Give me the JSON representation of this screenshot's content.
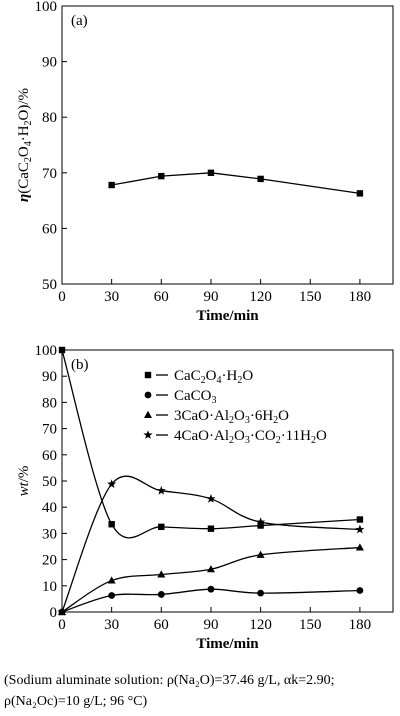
{
  "chart_data": [
    {
      "type": "line",
      "panel_label": "(a)",
      "ylabel": "η(CaC₂O₄·H₂O)/%",
      "xlabel": "Time/min",
      "xlim": [
        0,
        200
      ],
      "ylim": [
        50,
        100
      ],
      "xticks": [
        0,
        30,
        60,
        90,
        120,
        150,
        180
      ],
      "yticks": [
        50,
        60,
        70,
        80,
        90,
        100
      ],
      "series": [
        {
          "marker": "square",
          "x": [
            30,
            60,
            90,
            120,
            180
          ],
          "y": [
            67.8,
            69.4,
            70.0,
            68.9,
            66.3
          ]
        }
      ]
    },
    {
      "type": "line",
      "panel_label": "(b)",
      "ylabel": "wt/%",
      "xlabel": "Time/min",
      "xlim": [
        0,
        200
      ],
      "ylim": [
        0,
        100
      ],
      "xticks": [
        0,
        30,
        60,
        90,
        120,
        150,
        180
      ],
      "yticks": [
        0,
        10,
        20,
        30,
        40,
        50,
        60,
        70,
        80,
        90,
        100
      ],
      "legend_position": "top-right",
      "series": [
        {
          "name": "CaC₂O₄·H₂O",
          "marker": "square",
          "x": [
            0,
            30,
            60,
            90,
            120,
            180
          ],
          "y": [
            100,
            33.5,
            32.5,
            31.8,
            33.0,
            35.3
          ]
        },
        {
          "name": "CaCO₃",
          "marker": "circle",
          "x": [
            0,
            30,
            60,
            90,
            120,
            180
          ],
          "y": [
            0,
            6.3,
            6.7,
            8.7,
            7.2,
            8.2
          ]
        },
        {
          "name": "3CaO·Al₂O₃·6H₂O",
          "marker": "triangle",
          "x": [
            0,
            30,
            60,
            90,
            120,
            180
          ],
          "y": [
            0,
            12.0,
            14.3,
            16.3,
            21.8,
            24.6
          ]
        },
        {
          "name": "4CaO·Al₂O₃·CO₂·11H₂O",
          "marker": "star",
          "x": [
            0,
            30,
            60,
            90,
            120,
            180
          ],
          "y": [
            0,
            48.8,
            46.3,
            43.2,
            34.3,
            31.5
          ]
        }
      ]
    }
  ],
  "caption": {
    "line1": "(Sodium aluminate solution: ρ(Na₂O)=37.46 g/L, αk=2.90;",
    "line2": "ρ(Na₂Oc)=10 g/L; 96 °C)"
  }
}
